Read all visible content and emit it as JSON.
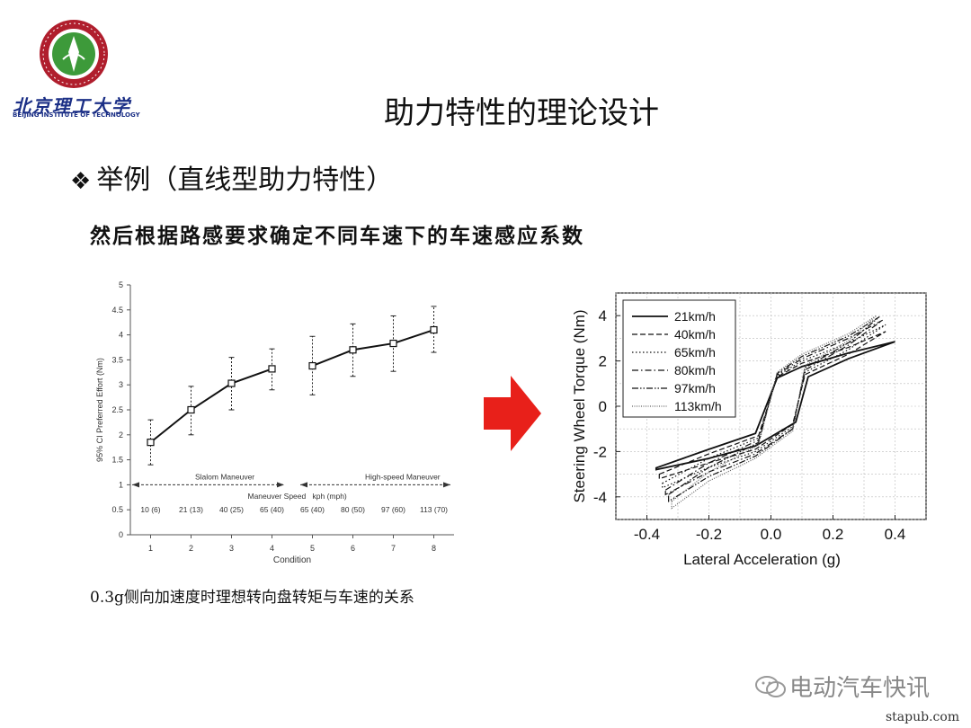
{
  "header": {
    "logo_text": "北京理工大学",
    "logo_subtext": "BEIJING INSTITUTE OF TECHNOLOGY",
    "title": "助力特性的理论设计"
  },
  "content": {
    "bullet": "举例（直线型助力特性）",
    "subtitle": "然后根据路感要求确定不同车速下的车速感应系数",
    "left_caption": "0.3g侧向加速度时理想转向盘转矩与车速的关系"
  },
  "arrow_color": "#e8201a",
  "watermark": {
    "text": "电动汽车快讯",
    "site": "stapub.com"
  },
  "chart_data": [
    {
      "type": "line",
      "title": "",
      "xlabel": "Condition",
      "ylabel": "95% CI Preferred Effort (Nm)",
      "xlim": [
        0.5,
        8.5
      ],
      "ylim": [
        0,
        5
      ],
      "x_ticks": [
        1,
        2,
        3,
        4,
        5,
        6,
        7,
        8
      ],
      "y_ticks": [
        0,
        0.5,
        1,
        1.5,
        2,
        2.5,
        3,
        3.5,
        4,
        4.5,
        5
      ],
      "speed_labels": [
        "10 (6)",
        "21 (13)",
        "40 (25)",
        "65 (40)",
        "65 (40)",
        "80 (50)",
        "97 (60)",
        "113 (70)"
      ],
      "annotations": {
        "slalom": "Slalom Maneuver",
        "highspeed": "High-speed Maneuver",
        "maneuver_speed": "Maneuver Speed",
        "units": "kph (mph)"
      },
      "series": [
        {
          "segment": "slalom",
          "x": [
            1,
            2,
            3,
            4
          ],
          "y": [
            1.85,
            2.5,
            3.03,
            3.32
          ],
          "lower": [
            1.4,
            2.0,
            2.5,
            2.9
          ],
          "upper": [
            2.3,
            2.97,
            3.55,
            3.72
          ]
        },
        {
          "segment": "highspeed",
          "x": [
            5,
            6,
            7,
            8
          ],
          "y": [
            3.38,
            3.7,
            3.83,
            4.1
          ],
          "lower": [
            2.8,
            3.17,
            3.27,
            3.65
          ],
          "upper": [
            3.97,
            4.22,
            4.38,
            4.57
          ]
        }
      ],
      "grid": false
    },
    {
      "type": "line",
      "title": "",
      "xlabel": "Lateral Acceleration (g)",
      "ylabel": "Steering Wheel Torque (Nm)",
      "xlim": [
        -0.5,
        0.5
      ],
      "ylim": [
        -5,
        5
      ],
      "x_ticks": [
        -0.4,
        -0.2,
        0.0,
        0.2,
        0.4
      ],
      "x_tick_labels": [
        "-0.4",
        "-0.2",
        "0.0",
        "0.2",
        "0.4"
      ],
      "y_ticks": [
        -4,
        -2,
        0,
        2,
        4
      ],
      "grid": true,
      "legend_position": "top-left",
      "series": [
        {
          "name": "21km/h",
          "dash": "solid",
          "scale": 1.0,
          "upper": [
            [
              -0.37,
              -2.72
            ],
            [
              -0.2,
              -1.9
            ],
            [
              -0.05,
              -1.2
            ],
            [
              0.02,
              1.25
            ],
            [
              0.1,
              1.75
            ],
            [
              0.25,
              2.35
            ],
            [
              0.4,
              2.85
            ]
          ],
          "lower": [
            [
              -0.37,
              -2.8
            ],
            [
              -0.2,
              -2.3
            ],
            [
              -0.05,
              -1.75
            ],
            [
              0.08,
              -0.7
            ],
            [
              0.12,
              1.3
            ],
            [
              0.25,
              2.1
            ],
            [
              0.4,
              2.85
            ]
          ]
        },
        {
          "name": "40km/h",
          "dash": "dashed",
          "scale": 1.06,
          "upper": [
            [
              -0.36,
              -3.0
            ],
            [
              -0.2,
              -2.1
            ],
            [
              -0.04,
              -1.3
            ],
            [
              0.02,
              1.3
            ],
            [
              0.1,
              1.9
            ],
            [
              0.25,
              2.6
            ],
            [
              0.37,
              3.3
            ]
          ],
          "lower": [
            [
              -0.36,
              -3.2
            ],
            [
              -0.2,
              -2.5
            ],
            [
              -0.05,
              -1.9
            ],
            [
              0.07,
              -0.8
            ],
            [
              0.11,
              1.4
            ],
            [
              0.25,
              2.3
            ],
            [
              0.37,
              3.3
            ]
          ]
        },
        {
          "name": "65km/h",
          "dash": "dotted",
          "scale": 1.12,
          "upper": [
            [
              -0.35,
              -3.4
            ],
            [
              -0.2,
              -2.3
            ],
            [
              -0.04,
              -1.4
            ],
            [
              0.02,
              1.35
            ],
            [
              0.1,
              2.0
            ],
            [
              0.25,
              2.8
            ],
            [
              0.37,
              3.6
            ]
          ],
          "lower": [
            [
              -0.35,
              -3.6
            ],
            [
              -0.2,
              -2.7
            ],
            [
              -0.05,
              -2.0
            ],
            [
              0.07,
              -0.9
            ],
            [
              0.11,
              1.5
            ],
            [
              0.25,
              2.5
            ],
            [
              0.37,
              3.6
            ]
          ]
        },
        {
          "name": "80km/h",
          "dash": "dashdot",
          "scale": 1.16,
          "upper": [
            [
              -0.34,
              -3.7
            ],
            [
              -0.2,
              -2.5
            ],
            [
              -0.04,
              -1.5
            ],
            [
              0.02,
              1.4
            ],
            [
              0.1,
              2.1
            ],
            [
              0.25,
              3.0
            ],
            [
              0.36,
              3.8
            ]
          ],
          "lower": [
            [
              -0.34,
              -3.9
            ],
            [
              -0.2,
              -2.9
            ],
            [
              -0.05,
              -2.1
            ],
            [
              0.07,
              -1.0
            ],
            [
              0.11,
              1.6
            ],
            [
              0.25,
              2.7
            ],
            [
              0.36,
              3.8
            ]
          ]
        },
        {
          "name": "97km/h",
          "dash": "dashdotdot",
          "scale": 1.2,
          "upper": [
            [
              -0.33,
              -3.9
            ],
            [
              -0.2,
              -2.7
            ],
            [
              -0.04,
              -1.6
            ],
            [
              0.02,
              1.45
            ],
            [
              0.1,
              2.2
            ],
            [
              0.25,
              3.1
            ],
            [
              0.35,
              3.95
            ]
          ],
          "lower": [
            [
              -0.33,
              -4.2
            ],
            [
              -0.2,
              -3.1
            ],
            [
              -0.05,
              -2.2
            ],
            [
              0.07,
              -1.0
            ],
            [
              0.11,
              1.7
            ],
            [
              0.25,
              2.8
            ],
            [
              0.35,
              3.95
            ]
          ]
        },
        {
          "name": "113km/h",
          "dash": "finedotted",
          "scale": 1.24,
          "upper": [
            [
              -0.32,
              -4.2
            ],
            [
              -0.2,
              -2.9
            ],
            [
              -0.04,
              -1.7
            ],
            [
              0.02,
              1.5
            ],
            [
              0.1,
              2.3
            ],
            [
              0.25,
              3.2
            ],
            [
              0.34,
              4.0
            ]
          ],
          "lower": [
            [
              -0.32,
              -4.5
            ],
            [
              -0.2,
              -3.3
            ],
            [
              -0.05,
              -2.3
            ],
            [
              0.07,
              -1.1
            ],
            [
              0.11,
              1.8
            ],
            [
              0.25,
              2.9
            ],
            [
              0.34,
              4.0
            ]
          ]
        }
      ]
    }
  ]
}
